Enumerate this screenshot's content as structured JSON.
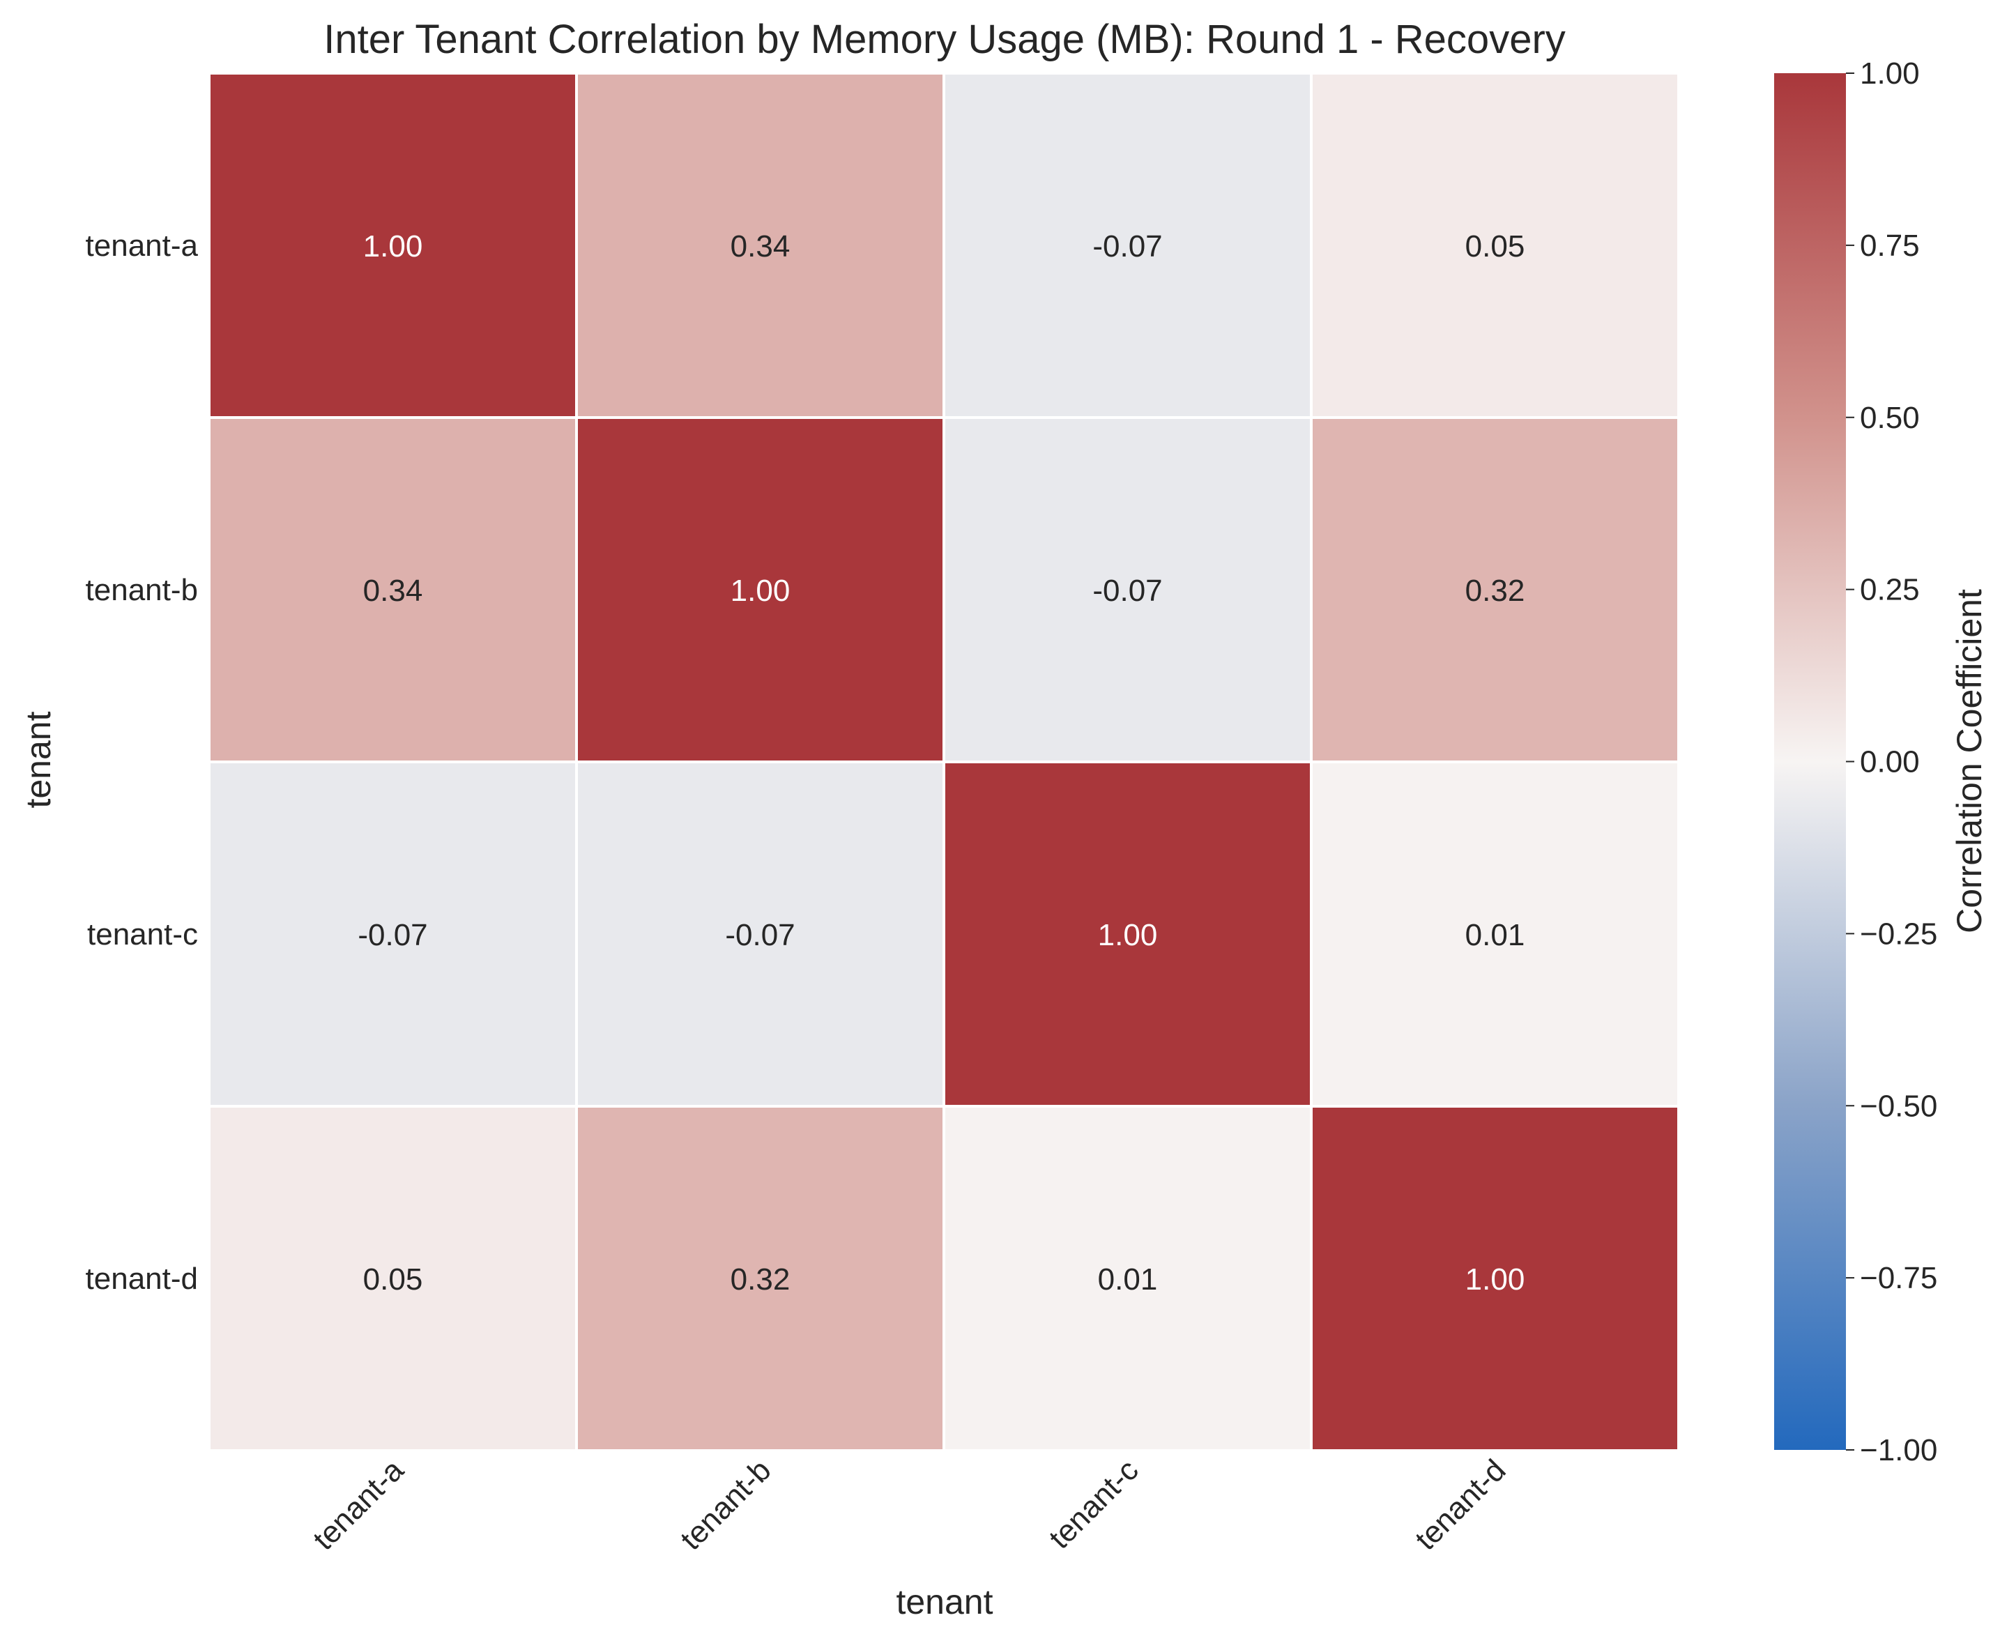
{
  "chart_data": {
    "type": "heatmap",
    "title": "Inter Tenant Correlation by Memory Usage (MB): Round 1 - Recovery",
    "xlabel": "tenant",
    "ylabel": "tenant",
    "x_categories": [
      "tenant-a",
      "tenant-b",
      "tenant-c",
      "tenant-d"
    ],
    "y_categories": [
      "tenant-a",
      "tenant-b",
      "tenant-c",
      "tenant-d"
    ],
    "values": [
      [
        1.0,
        0.34,
        -0.07,
        0.05
      ],
      [
        0.34,
        1.0,
        -0.07,
        0.32
      ],
      [
        -0.07,
        -0.07,
        1.0,
        0.01
      ],
      [
        0.05,
        0.32,
        0.01,
        1.0
      ]
    ],
    "cell_labels": [
      [
        "1.00",
        "0.34",
        "-0.07",
        "0.05"
      ],
      [
        "0.34",
        "1.00",
        "-0.07",
        "0.32"
      ],
      [
        "-0.07",
        "-0.07",
        "1.00",
        "0.01"
      ],
      [
        "0.05",
        "0.32",
        "0.01",
        "1.00"
      ]
    ],
    "colorbar": {
      "label": "Correlation Coefficient",
      "range": [
        -1.0,
        1.0
      ],
      "ticks": [
        1.0,
        0.75,
        0.5,
        0.25,
        0.0,
        -0.25,
        -0.5,
        -0.75,
        -1.0
      ],
      "tick_labels": [
        "1.00",
        "0.75",
        "0.50",
        "0.25",
        "0.00",
        "−0.25",
        "−0.50",
        "−0.75",
        "−1.00"
      ],
      "colormap": "vlag",
      "color_stops": [
        {
          "value": -1.0,
          "color": "#2369bd"
        },
        {
          "value": -0.5,
          "color": "#8aa3c8"
        },
        {
          "value": 0.0,
          "color": "#f7f4f3"
        },
        {
          "value": 0.5,
          "color": "#d1928c"
        },
        {
          "value": 1.0,
          "color": "#a9373b"
        }
      ]
    },
    "cell_border_color": "#ffffff",
    "text_color_dark": "#262626",
    "text_color_light": "#ffffff",
    "grid": false
  }
}
